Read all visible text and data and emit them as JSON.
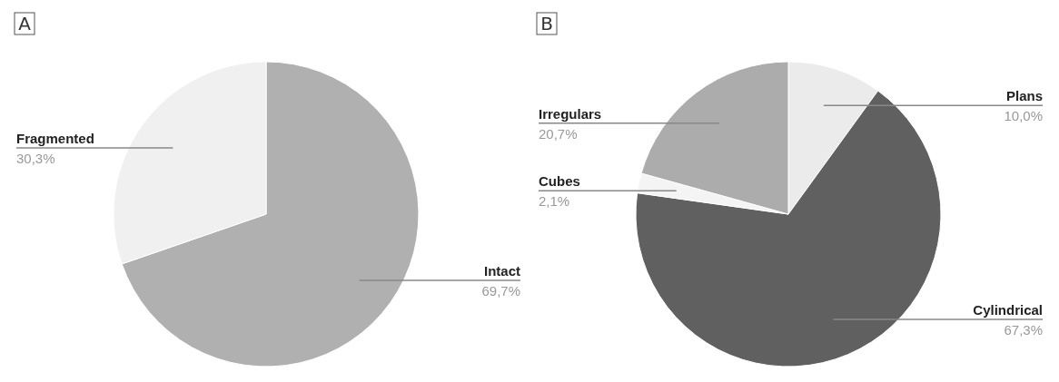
{
  "chart_data": [
    {
      "type": "pie",
      "title": "A",
      "categories": [
        "Intact",
        "Fragmented"
      ],
      "values": [
        69.7,
        30.3
      ],
      "colors": [
        "#b0b0b0",
        "#f0f0f0"
      ],
      "value_labels": [
        "69,7%",
        "30,3%"
      ]
    },
    {
      "type": "pie",
      "title": "B",
      "categories": [
        "Plans",
        "Cylindrical",
        "Cubes",
        "Irregulars"
      ],
      "values": [
        10.0,
        67.3,
        2.1,
        20.7
      ],
      "colors": [
        "#ebebeb",
        "#606060",
        "#f4f4f4",
        "#acacac"
      ],
      "value_labels": [
        "10,0%",
        "67,3%",
        "2,1%",
        "20,7%"
      ]
    }
  ]
}
